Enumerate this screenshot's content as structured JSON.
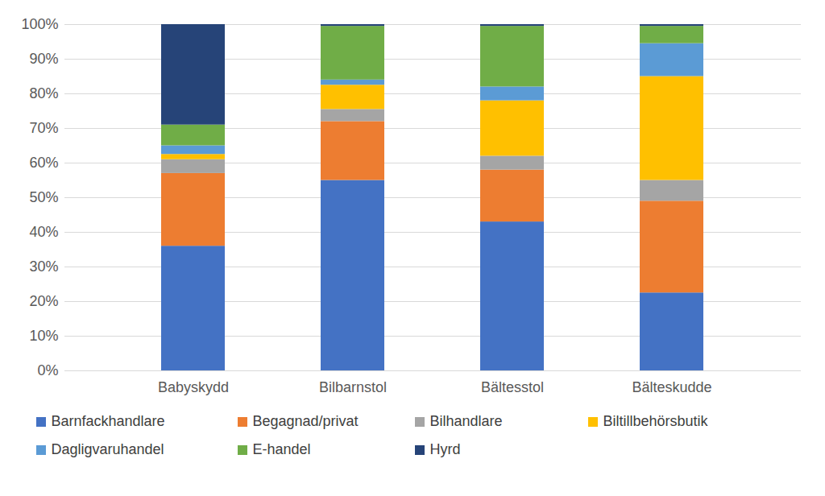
{
  "chart_data": {
    "type": "bar",
    "stacked": true,
    "grid": true,
    "legend": "bottom",
    "categories": [
      "Babyskydd",
      "Bilbarnstol",
      "Bältesstol",
      "Bälteskudde"
    ],
    "series": [
      {
        "name": "Barnfackhandlare",
        "color": "#4472c4",
        "values": [
          36,
          55,
          43,
          22.5
        ]
      },
      {
        "name": "Begagnad/privat",
        "color": "#ed7d31",
        "values": [
          21,
          17,
          15,
          26.5
        ]
      },
      {
        "name": "Bilhandlare",
        "color": "#a5a5a5",
        "values": [
          4,
          3.5,
          4,
          6
        ]
      },
      {
        "name": "Biltillbehörsbutik",
        "color": "#ffc000",
        "values": [
          1.5,
          7,
          16,
          30
        ]
      },
      {
        "name": "Dagligvaruhandel",
        "color": "#5b9bd5",
        "values": [
          2.5,
          1.5,
          4,
          9.5
        ]
      },
      {
        "name": "E-handel",
        "color": "#70ad47",
        "values": [
          6,
          15.5,
          17.5,
          5
        ]
      },
      {
        "name": "Hyrd",
        "color": "#264478",
        "values": [
          29,
          0.5,
          0.5,
          0.5
        ]
      }
    ],
    "ylim": [
      0,
      100
    ],
    "yticks": [
      {
        "value": 0,
        "label": "0%"
      },
      {
        "value": 10,
        "label": "10%"
      },
      {
        "value": 20,
        "label": "20%"
      },
      {
        "value": 30,
        "label": "30%"
      },
      {
        "value": 40,
        "label": "40%"
      },
      {
        "value": 50,
        "label": "50%"
      },
      {
        "value": 60,
        "label": "60%"
      },
      {
        "value": 70,
        "label": "70%"
      },
      {
        "value": 80,
        "label": "80%"
      },
      {
        "value": 90,
        "label": "90%"
      },
      {
        "value": 100,
        "label": "100%"
      }
    ]
  }
}
